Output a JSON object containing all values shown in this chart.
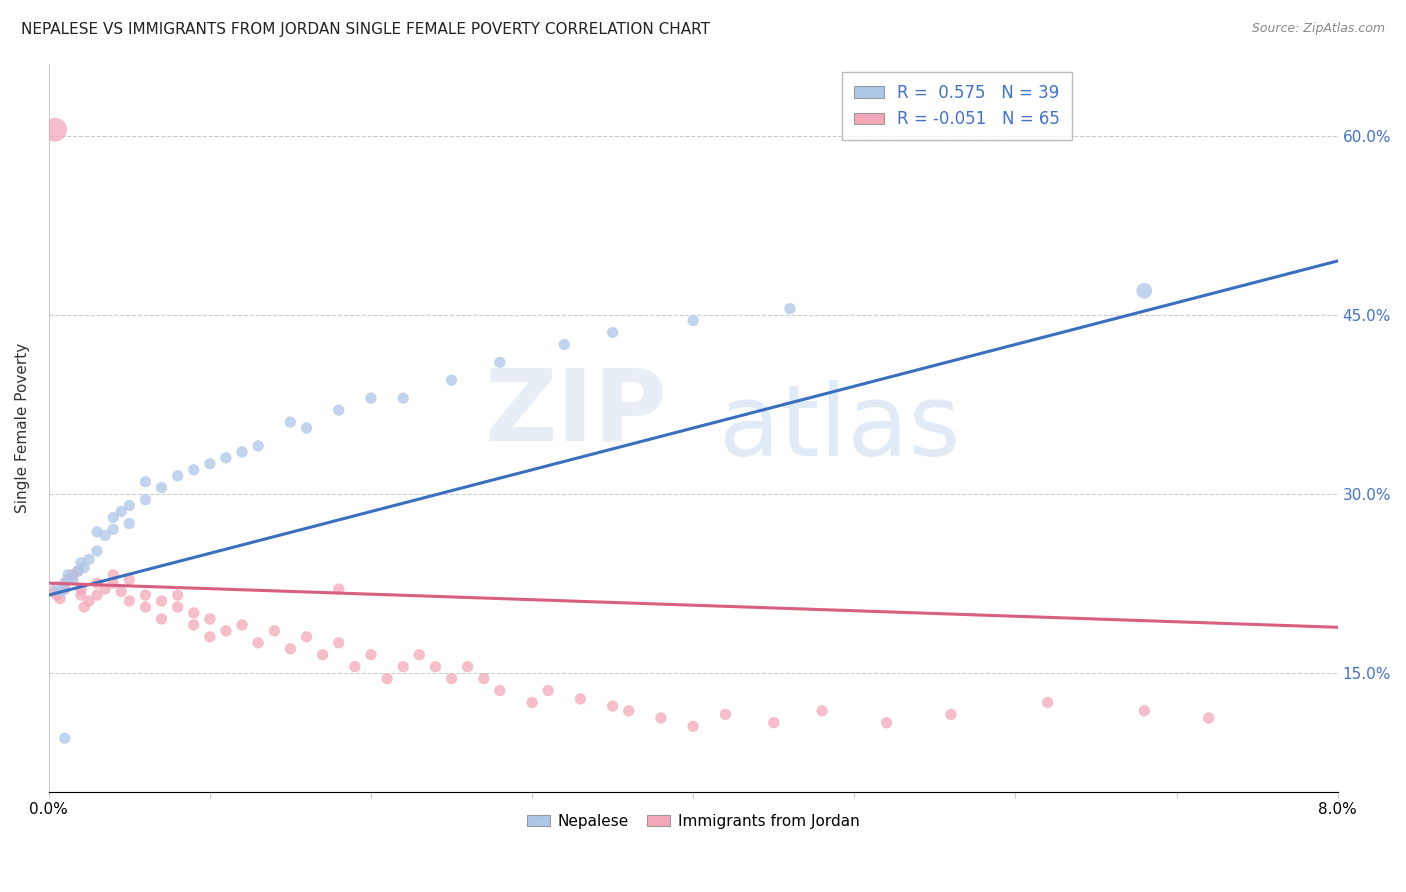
{
  "title": "NEPALESE VS IMMIGRANTS FROM JORDAN SINGLE FEMALE POVERTY CORRELATION CHART",
  "source": "Source: ZipAtlas.com",
  "ylabel": "Single Female Poverty",
  "yaxis_labels": [
    "15.0%",
    "30.0%",
    "45.0%",
    "60.0%"
  ],
  "yaxis_values": [
    0.15,
    0.3,
    0.45,
    0.6
  ],
  "xlim": [
    0.0,
    0.08
  ],
  "ylim": [
    0.05,
    0.66
  ],
  "legend_label1": "Nepalese",
  "legend_label2": "Immigrants from Jordan",
  "r1": 0.575,
  "n1": 39,
  "r2": -0.051,
  "n2": 65,
  "color_blue": "#aec6e8",
  "color_pink": "#f4a7b9",
  "color_line_blue": "#3a6fbf",
  "color_line_pink": "#d95f7f",
  "watermark_zip": "ZIP",
  "watermark_atlas": "atlas",
  "nepalese_x": [
    0.0005,
    0.0008,
    0.001,
    0.0012,
    0.0015,
    0.0018,
    0.002,
    0.0022,
    0.0025,
    0.003,
    0.003,
    0.0035,
    0.004,
    0.004,
    0.0045,
    0.005,
    0.005,
    0.006,
    0.006,
    0.007,
    0.008,
    0.009,
    0.01,
    0.011,
    0.012,
    0.013,
    0.015,
    0.016,
    0.018,
    0.02,
    0.022,
    0.025,
    0.028,
    0.032,
    0.035,
    0.04,
    0.046,
    0.068,
    0.001
  ],
  "nepalese_y": [
    0.222,
    0.218,
    0.225,
    0.232,
    0.228,
    0.235,
    0.242,
    0.238,
    0.245,
    0.252,
    0.268,
    0.265,
    0.28,
    0.27,
    0.285,
    0.29,
    0.275,
    0.295,
    0.31,
    0.305,
    0.315,
    0.32,
    0.325,
    0.33,
    0.335,
    0.34,
    0.36,
    0.355,
    0.37,
    0.38,
    0.38,
    0.395,
    0.41,
    0.425,
    0.435,
    0.445,
    0.455,
    0.47,
    0.095
  ],
  "nepalese_sizes": [
    60,
    60,
    60,
    60,
    60,
    60,
    60,
    60,
    60,
    60,
    60,
    60,
    60,
    60,
    60,
    60,
    60,
    60,
    60,
    60,
    60,
    60,
    60,
    60,
    60,
    60,
    60,
    60,
    60,
    60,
    60,
    60,
    60,
    60,
    60,
    60,
    60,
    120,
    60
  ],
  "jordan_x": [
    0.0003,
    0.0005,
    0.0007,
    0.001,
    0.001,
    0.0012,
    0.0015,
    0.0018,
    0.002,
    0.002,
    0.0022,
    0.0025,
    0.003,
    0.003,
    0.0035,
    0.004,
    0.004,
    0.0045,
    0.005,
    0.005,
    0.006,
    0.006,
    0.007,
    0.007,
    0.008,
    0.008,
    0.009,
    0.009,
    0.01,
    0.01,
    0.011,
    0.012,
    0.013,
    0.014,
    0.015,
    0.016,
    0.017,
    0.018,
    0.019,
    0.02,
    0.021,
    0.022,
    0.023,
    0.024,
    0.025,
    0.026,
    0.027,
    0.028,
    0.03,
    0.031,
    0.033,
    0.035,
    0.036,
    0.038,
    0.04,
    0.042,
    0.045,
    0.048,
    0.052,
    0.056,
    0.062,
    0.068,
    0.072,
    0.018,
    0.0004
  ],
  "jordan_y": [
    0.218,
    0.215,
    0.212,
    0.225,
    0.22,
    0.228,
    0.232,
    0.235,
    0.215,
    0.22,
    0.205,
    0.21,
    0.225,
    0.215,
    0.22,
    0.232,
    0.225,
    0.218,
    0.21,
    0.228,
    0.215,
    0.205,
    0.195,
    0.21,
    0.205,
    0.215,
    0.19,
    0.2,
    0.18,
    0.195,
    0.185,
    0.19,
    0.175,
    0.185,
    0.17,
    0.18,
    0.165,
    0.175,
    0.155,
    0.165,
    0.145,
    0.155,
    0.165,
    0.155,
    0.145,
    0.155,
    0.145,
    0.135,
    0.125,
    0.135,
    0.128,
    0.122,
    0.118,
    0.112,
    0.105,
    0.115,
    0.108,
    0.118,
    0.108,
    0.115,
    0.125,
    0.118,
    0.112,
    0.22,
    0.605
  ],
  "jordan_sizes": [
    60,
    60,
    60,
    60,
    60,
    60,
    60,
    60,
    60,
    60,
    60,
    60,
    60,
    60,
    60,
    60,
    60,
    60,
    60,
    60,
    60,
    60,
    60,
    60,
    60,
    60,
    60,
    60,
    60,
    60,
    60,
    60,
    60,
    60,
    60,
    60,
    60,
    60,
    60,
    60,
    60,
    60,
    60,
    60,
    60,
    60,
    60,
    60,
    60,
    60,
    60,
    60,
    60,
    60,
    60,
    60,
    60,
    60,
    60,
    60,
    60,
    60,
    60,
    60,
    280
  ]
}
